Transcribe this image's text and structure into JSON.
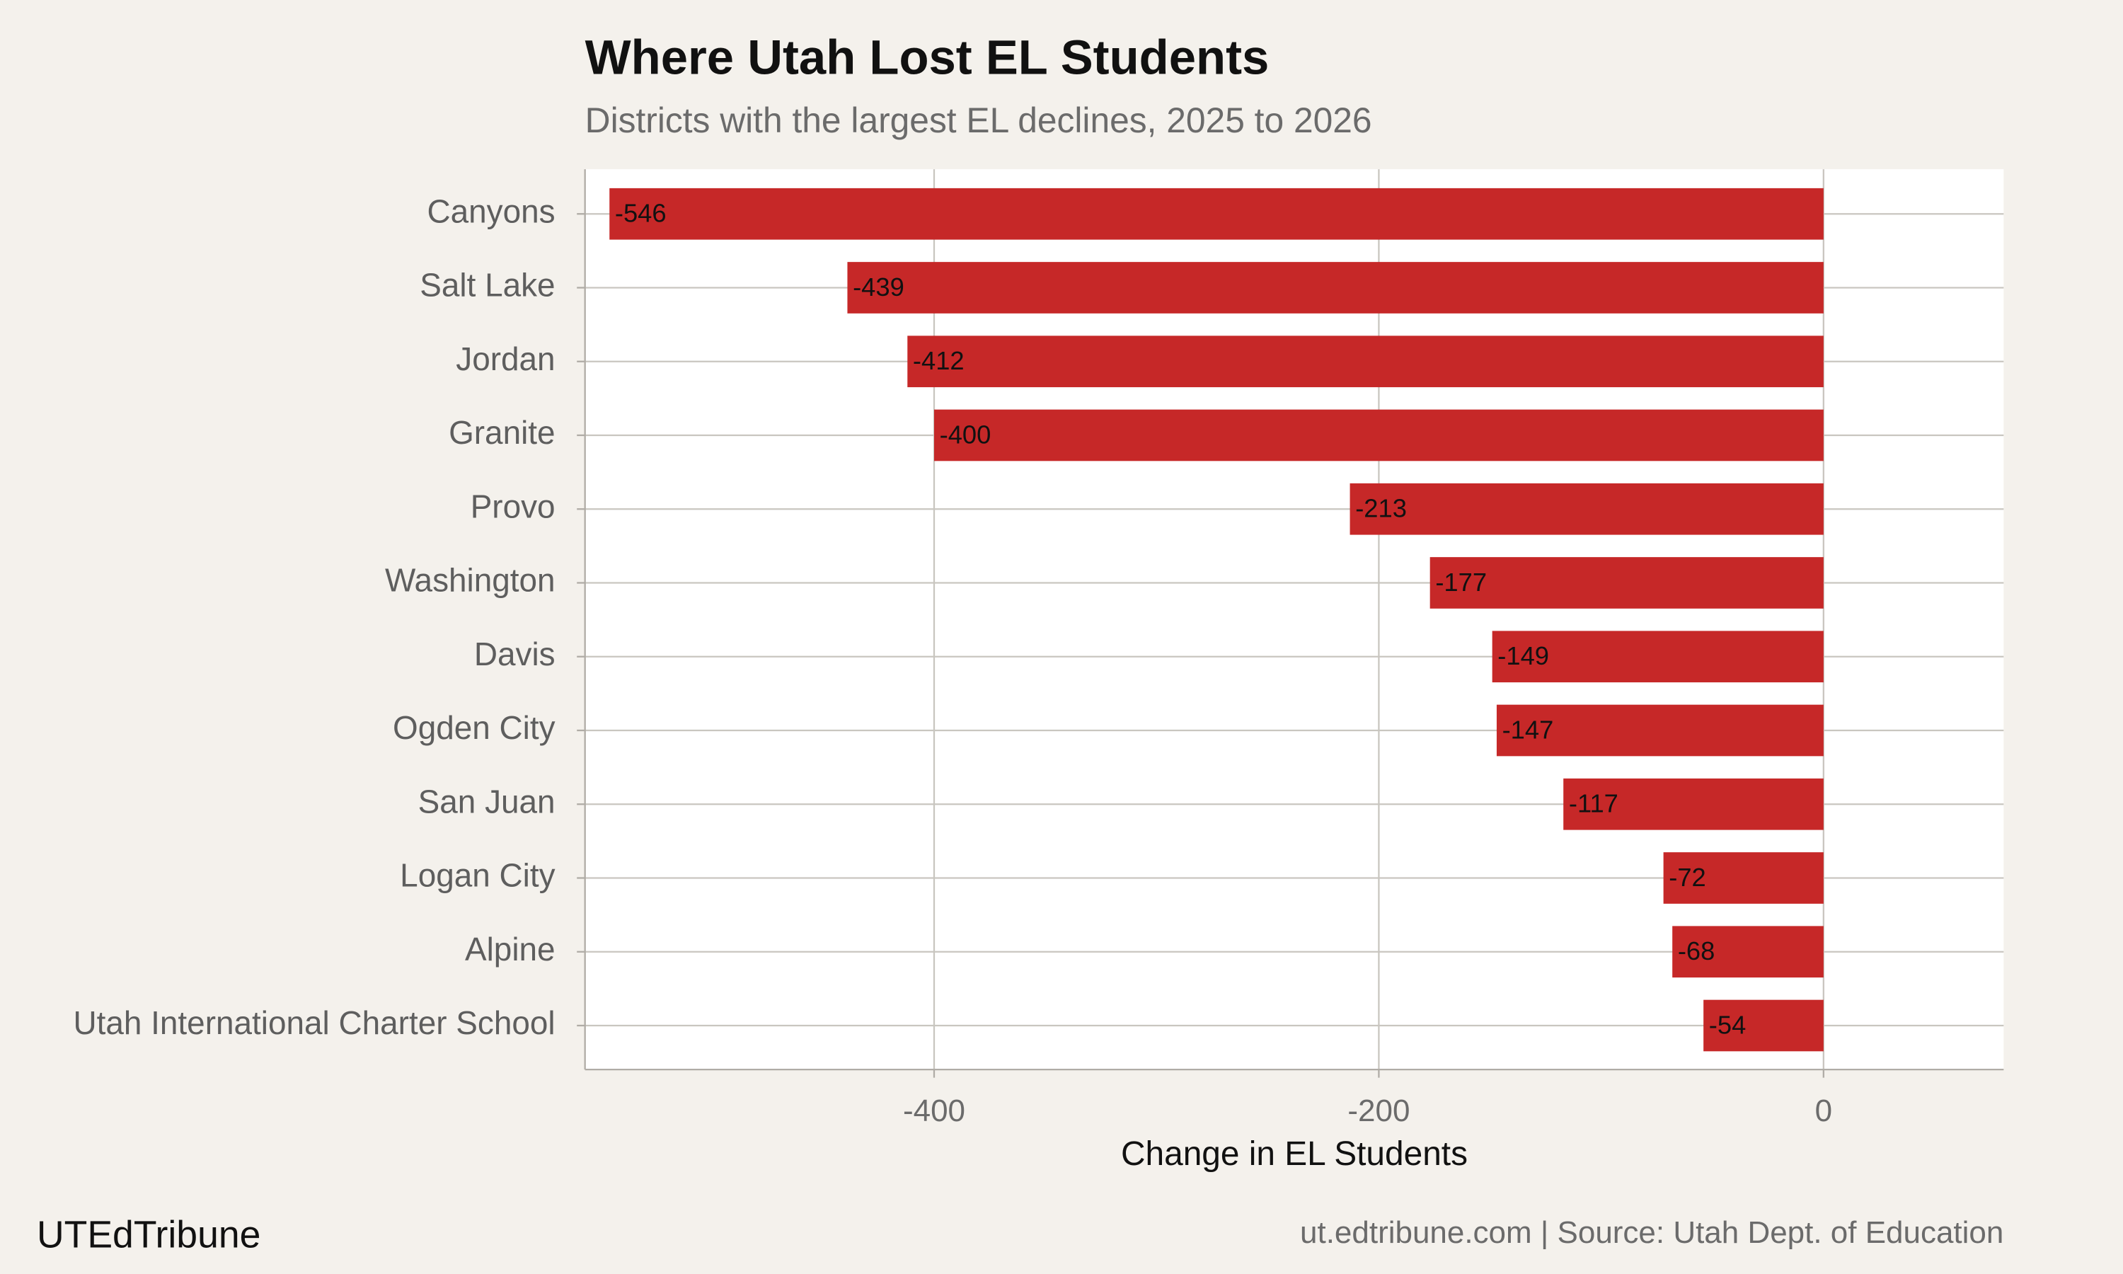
{
  "chart_data": {
    "type": "bar",
    "orientation": "horizontal",
    "title": "Where Utah Lost EL Students",
    "subtitle": "Districts with the largest EL declines, 2025 to 2026",
    "x_label": "Change in EL Students",
    "categories": [
      "Canyons",
      "Salt Lake",
      "Jordan",
      "Granite",
      "Provo",
      "Washington",
      "Davis",
      "Ogden City",
      "San Juan",
      "Logan City",
      "Alpine",
      "Utah International Charter School"
    ],
    "values": [
      -546,
      -439,
      -412,
      -400,
      -213,
      -177,
      -149,
      -147,
      -117,
      -72,
      -68,
      -54
    ],
    "color": "#c62828",
    "xlim": [
      -557,
      81
    ],
    "xticks": [
      -400,
      -200,
      0
    ],
    "grid": true,
    "brand": "UTEdTribune",
    "source": "ut.edtribune.com | Source: Utah Dept. of Education"
  }
}
